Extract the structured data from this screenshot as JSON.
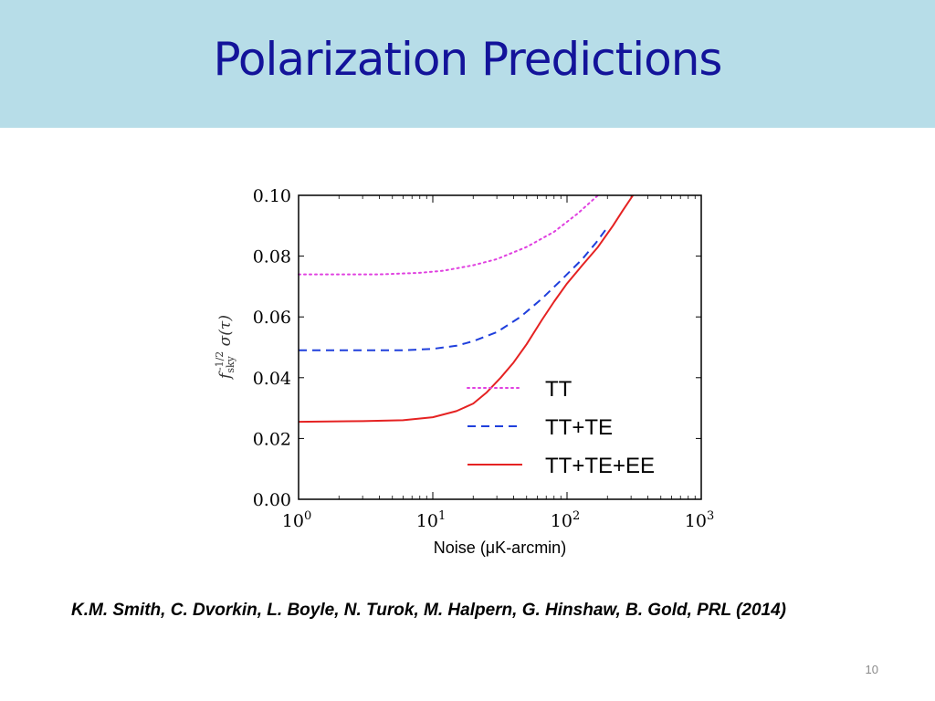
{
  "slide": {
    "title": "Polarization Predictions",
    "citation": "K.M.  Smith, C. Dvorkin, L. Boyle, N. Turok, M. Halpern, G. Hinshaw, B. Gold, PRL (2014)",
    "page_number": "10"
  },
  "chart_data": {
    "type": "line",
    "title": "",
    "xlabel": "Noise (μK-arcmin)",
    "ylabel": "f_sky^(-1/2) σ(τ)",
    "xscale": "log",
    "xlim": [
      1,
      1000
    ],
    "ylim": [
      0.0,
      0.1
    ],
    "xticks": [
      {
        "value": 1,
        "base": "10",
        "exp": "0"
      },
      {
        "value": 10,
        "base": "10",
        "exp": "1"
      },
      {
        "value": 100,
        "base": "10",
        "exp": "2"
      },
      {
        "value": 1000,
        "base": "10",
        "exp": "3"
      }
    ],
    "yticks": [
      {
        "value": 0.0,
        "label": "0.00"
      },
      {
        "value": 0.02,
        "label": "0.02"
      },
      {
        "value": 0.04,
        "label": "0.04"
      },
      {
        "value": 0.06,
        "label": "0.06"
      },
      {
        "value": 0.08,
        "label": "0.08"
      },
      {
        "value": 0.1,
        "label": "0.10"
      }
    ],
    "grid": false,
    "legend_position": "lower-right",
    "series": [
      {
        "name": "TT",
        "color": "#e040e0",
        "style": "dotted",
        "x": [
          1,
          2,
          4,
          8,
          12,
          20,
          30,
          50,
          80,
          120,
          170
        ],
        "y": [
          0.074,
          0.074,
          0.074,
          0.0745,
          0.0752,
          0.077,
          0.079,
          0.083,
          0.088,
          0.094,
          0.1
        ]
      },
      {
        "name": "TT+TE",
        "color": "#1f3fdc",
        "style": "dashed",
        "x": [
          1,
          3,
          6,
          10,
          15,
          20,
          30,
          45,
          65,
          90,
          130,
          165,
          200
        ],
        "y": [
          0.049,
          0.049,
          0.049,
          0.0495,
          0.0505,
          0.052,
          0.055,
          0.06,
          0.066,
          0.072,
          0.079,
          0.0845,
          0.0895
        ]
      },
      {
        "name": "TT+TE+EE",
        "color": "#e52222",
        "style": "solid",
        "x": [
          1,
          3,
          6,
          10,
          15,
          20,
          25,
          32,
          40,
          50,
          65,
          80,
          100,
          130,
          170,
          220,
          260,
          310
        ],
        "y": [
          0.0255,
          0.0257,
          0.026,
          0.027,
          0.029,
          0.0315,
          0.035,
          0.04,
          0.045,
          0.051,
          0.059,
          0.065,
          0.071,
          0.077,
          0.083,
          0.09,
          0.095,
          0.1
        ]
      }
    ]
  }
}
